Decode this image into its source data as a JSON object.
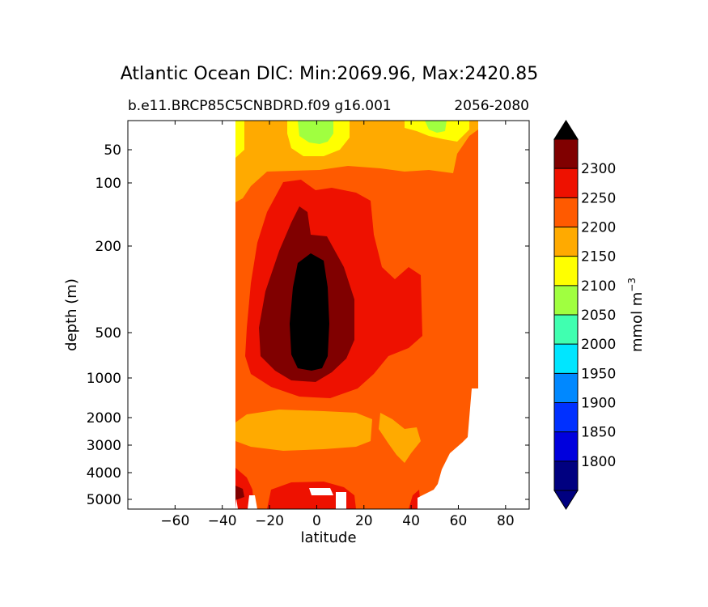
{
  "chart_data": {
    "type": "contourf",
    "title": "Atlantic Ocean DIC: Min:2069.96, Max:2420.85",
    "subtitle_left": "b.e11.BRCP85C5CNBDRD.f09 g16.001",
    "subtitle_right": "2056-2080",
    "xlabel": "latitude",
    "ylabel": "depth (m)",
    "xlim": [
      -80,
      90
    ],
    "ylim": [
      5500,
      25
    ],
    "x_ticks": [
      "−60",
      "−40",
      "−20",
      "0",
      "20",
      "40",
      "60",
      "80"
    ],
    "x_tick_values": [
      -60,
      -40,
      -20,
      0,
      20,
      40,
      60,
      80
    ],
    "y_ticks": [
      "50",
      "100",
      "200",
      "500",
      "1000",
      "2000",
      "3000",
      "4000",
      "5000"
    ],
    "y_tick_values": [
      50,
      100,
      200,
      500,
      1000,
      2000,
      3000,
      4000,
      5000
    ],
    "data_extent_latitude": [
      -34,
      68
    ],
    "colorbar": {
      "label": "mmol m",
      "label_superscript": "−3",
      "extend": "both",
      "levels": [
        1750,
        1800,
        1850,
        1900,
        1950,
        2000,
        2050,
        2100,
        2150,
        2200,
        2250,
        2300,
        2350
      ],
      "tick_labels": [
        "1800",
        "1850",
        "1900",
        "1950",
        "2000",
        "2050",
        "2100",
        "2150",
        "2200",
        "2250",
        "2300"
      ],
      "colors": [
        "#000080",
        "#0000dd",
        "#0030ff",
        "#0088ff",
        "#00e6ff",
        "#40ffb0",
        "#a0ff40",
        "#ffff00",
        "#ffaa00",
        "#ff5a00",
        "#ee1100",
        "#800000"
      ],
      "under_color": "#000080",
      "over_color": "#000000"
    }
  }
}
